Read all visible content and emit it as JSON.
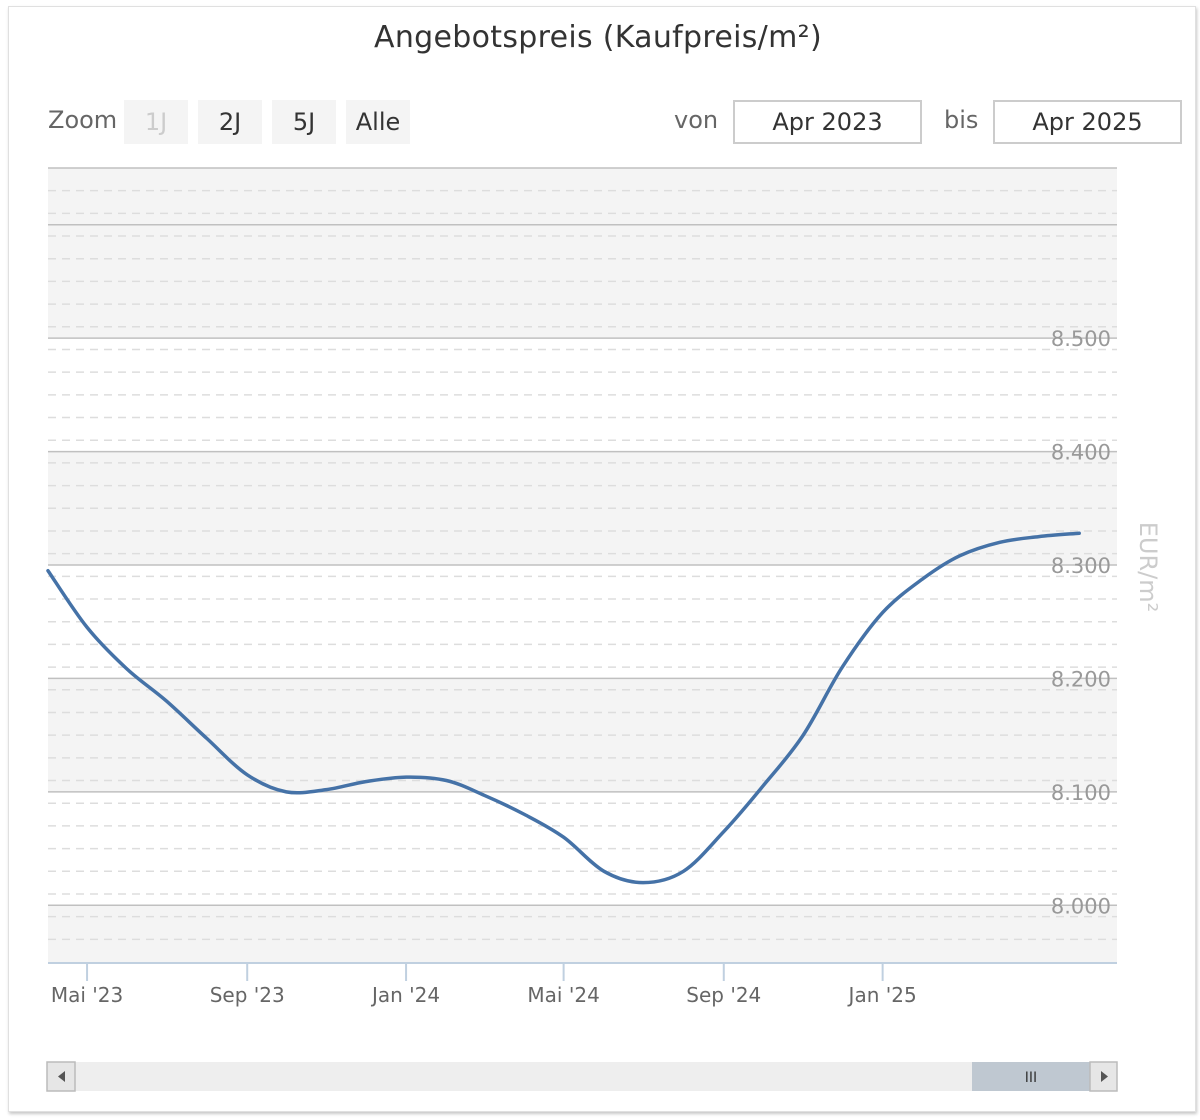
{
  "header": {
    "title": "Angebotspreis (Kaufpreis/m²)"
  },
  "range_selector": {
    "zoom_label": "Zoom",
    "buttons": [
      "1J",
      "2J",
      "5J",
      "Alle"
    ],
    "from_label": "von",
    "from_value": "Apr 2023",
    "to_label": "bis",
    "to_value": "Apr 2025"
  },
  "navigator": {
    "handle_glyph": "III",
    "left_arrow_icon": "triangle-left-icon",
    "right_arrow_icon": "triangle-right-icon"
  },
  "chart_data": {
    "type": "line",
    "title": "Angebotspreis (Kaufpreis/m²)",
    "ylabel": "EUR/m²",
    "ylim": [
      7950,
      8650
    ],
    "x_range": [
      "2023-04-01",
      "2025-06-30"
    ],
    "y_ticks": [
      8000,
      8100,
      8200,
      8300,
      8400,
      8500
    ],
    "y_tick_labels": [
      "8.000",
      "8.100",
      "8.200",
      "8.300",
      "8.400",
      "8.500"
    ],
    "x_ticks": [
      "2023-05-01",
      "2023-09-01",
      "2024-01-01",
      "2024-05-01",
      "2024-09-01",
      "2025-01-01"
    ],
    "x_tick_labels": [
      "Mai '23",
      "Sep '23",
      "Jan '24",
      "Mai '24",
      "Sep '24",
      "Jan '25"
    ],
    "grid": true,
    "line_color": "#4572a7",
    "series": [
      {
        "x": [
          "2023-04-01",
          "2023-05-01",
          "2023-06-01",
          "2023-07-01",
          "2023-08-01",
          "2023-09-01",
          "2023-10-01",
          "2023-11-01",
          "2023-12-01",
          "2024-01-01",
          "2024-02-01",
          "2024-03-01",
          "2024-04-01",
          "2024-05-01",
          "2024-06-01",
          "2024-07-01",
          "2024-08-01",
          "2024-09-01",
          "2024-10-01",
          "2024-11-01",
          "2024-12-01",
          "2025-01-01",
          "2025-02-01",
          "2025-03-01",
          "2025-04-01",
          "2025-05-01",
          "2025-06-01"
        ],
        "values": [
          8295,
          8245,
          8208,
          8180,
          8147,
          8115,
          8100,
          8102,
          8109,
          8113,
          8110,
          8097,
          8080,
          8060,
          8030,
          8020,
          8030,
          8065,
          8105,
          8150,
          8210,
          8258,
          8288,
          8308,
          8320,
          8325,
          8328
        ]
      }
    ]
  }
}
